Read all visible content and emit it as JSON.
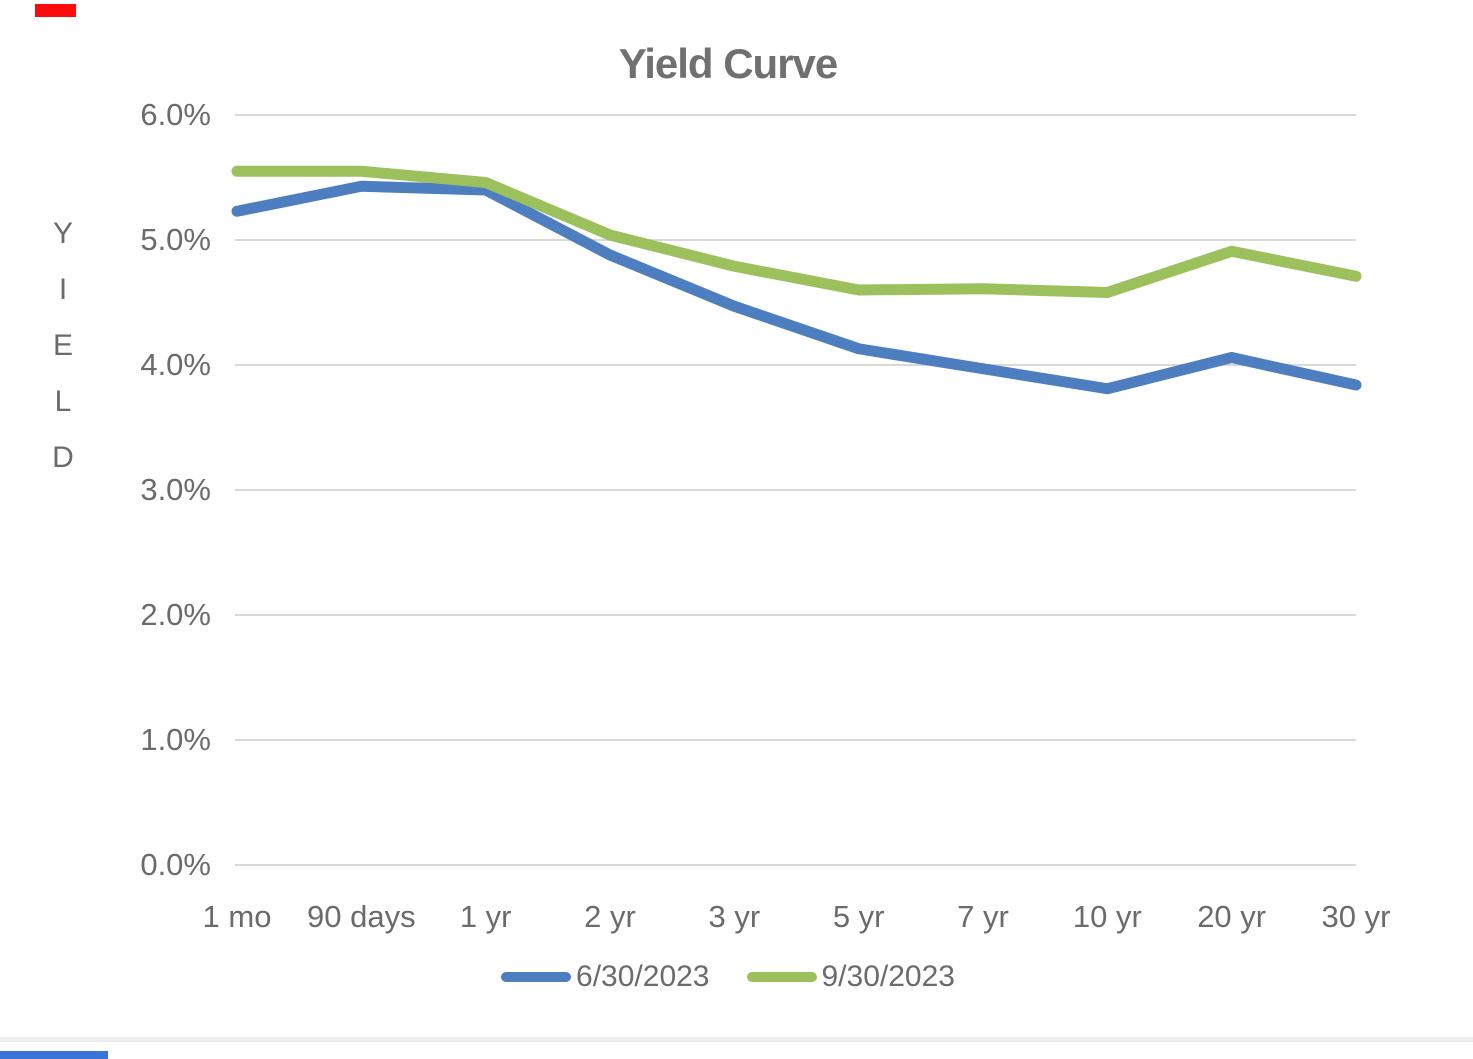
{
  "chart_data": {
    "type": "line",
    "title": "Yield Curve",
    "ylabel": "YIELD",
    "xlabel": "",
    "categories": [
      "1 mo",
      "90 days",
      "1 yr",
      "2 yr",
      "3 yr",
      "5 yr",
      "7 yr",
      "10 yr",
      "20 yr",
      "30 yr"
    ],
    "series": [
      {
        "name": "6/30/2023",
        "color": "#4d7ebf",
        "values": [
          5.23,
          5.43,
          5.4,
          4.88,
          4.47,
          4.13,
          3.97,
          3.81,
          4.06,
          3.84
        ]
      },
      {
        "name": "9/30/2023",
        "color": "#9cc05c",
        "values": [
          5.55,
          5.55,
          5.46,
          5.04,
          4.79,
          4.6,
          4.61,
          4.58,
          4.91,
          4.71
        ]
      }
    ],
    "ylim": [
      0,
      6
    ],
    "ytick_labels": [
      "0.0%",
      "1.0%",
      "2.0%",
      "3.0%",
      "4.0%",
      "5.0%",
      "6.0%"
    ],
    "grid": true,
    "gridline_color": "#d9d9d9",
    "legend_position": "bottom",
    "axis_text_color": "#6b6b6b",
    "title_color": "#707070"
  },
  "accents": {
    "top_left_mark_color": "#fb0b0b",
    "bottom_left_bar_color": "#3b74d9",
    "bottom_divider_color": "#ededed"
  }
}
